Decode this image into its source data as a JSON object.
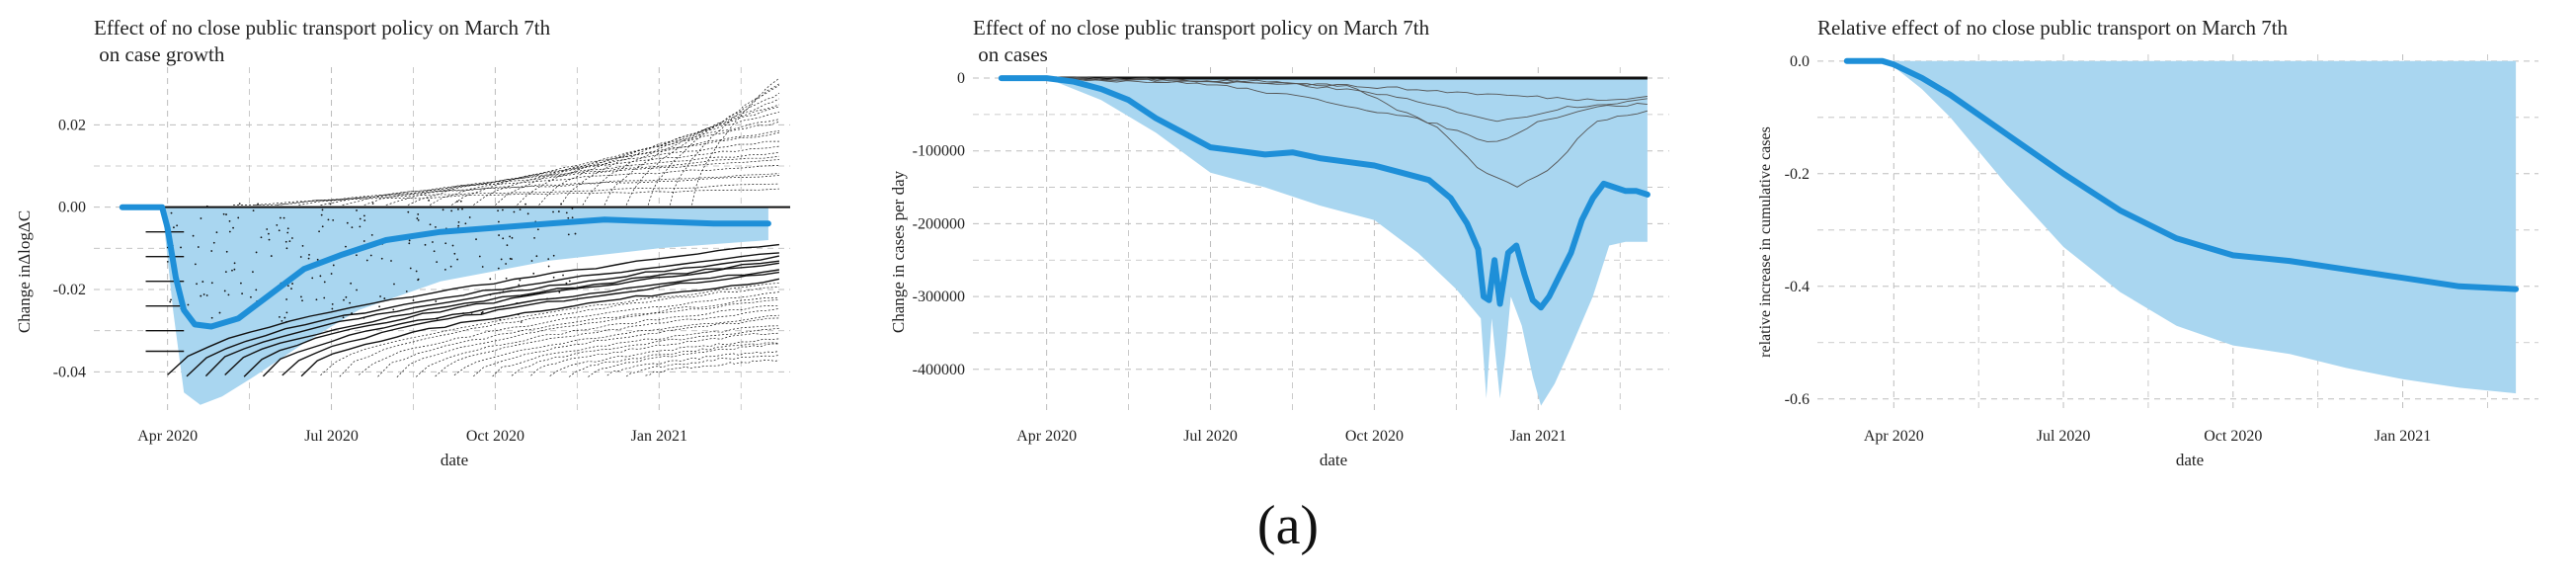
{
  "subfigure_label": "(a)",
  "colors": {
    "line": "#1E8FD8",
    "band": "#A9D6F0",
    "grid": "#BDBDBD",
    "traces": "#111111"
  },
  "chart_data": [
    {
      "type": "line",
      "title_lines": [
        "Effect of no close public transport policy on March 7th",
        " on case growth"
      ],
      "xlabel": "date",
      "ylabel": "Change inΔlogΔC",
      "x_ticks": [
        {
          "x": 1.0,
          "label": "Apr 2020"
        },
        {
          "x": 4.0,
          "label": "Jul 2020"
        },
        {
          "x": 7.0,
          "label": "Oct 2020"
        },
        {
          "x": 10.0,
          "label": "Jan 2021"
        }
      ],
      "y_ticks": [
        {
          "y": 0.02,
          "label": "0.02"
        },
        {
          "y": 0.0,
          "label": "0.00"
        },
        {
          "y": -0.02,
          "label": "-0.02"
        },
        {
          "y": -0.04,
          "label": "-0.04"
        }
      ],
      "xlim": [
        -0.35,
        12.4
      ],
      "ylim": [
        -0.05,
        0.034
      ],
      "series": [
        {
          "name": "estimate",
          "x": [
            0.17,
            0.9,
            1.0,
            1.15,
            1.3,
            1.5,
            1.8,
            2.3,
            2.9,
            3.5,
            4.2,
            5.0,
            6.0,
            7.0,
            8.0,
            9.0,
            10.0,
            11.0,
            12.0
          ],
          "y": [
            0.0,
            0.0,
            -0.005,
            -0.017,
            -0.025,
            -0.0285,
            -0.029,
            -0.027,
            -0.021,
            -0.015,
            -0.0115,
            -0.008,
            -0.006,
            -0.005,
            -0.004,
            -0.003,
            -0.0035,
            -0.004,
            -0.004
          ]
        }
      ],
      "band": {
        "x": [
          0.9,
          1.1,
          1.3,
          1.6,
          2.0,
          2.6,
          3.5,
          4.5,
          6.0,
          8.0,
          10.0,
          12.0
        ],
        "upper": [
          0.0,
          0.0,
          0.0,
          0.0,
          0.0,
          0.0,
          0.0,
          0.0,
          0.0,
          0.0,
          0.0,
          0.0
        ],
        "lower": [
          0.0,
          -0.025,
          -0.045,
          -0.048,
          -0.046,
          -0.041,
          -0.033,
          -0.025,
          -0.018,
          -0.013,
          -0.01,
          -0.008
        ]
      },
      "trace_description": "black bootstrap traces fanning above and below zero"
    },
    {
      "type": "line",
      "title_lines": [
        "Effect of no close public transport policy on March 7th",
        " on cases"
      ],
      "xlabel": "date",
      "ylabel": "Change in cases per day",
      "x_ticks": [
        {
          "x": 1.0,
          "label": "Apr 2020"
        },
        {
          "x": 4.0,
          "label": "Jul 2020"
        },
        {
          "x": 7.0,
          "label": "Oct 2020"
        },
        {
          "x": 10.0,
          "label": "Jan 2021"
        }
      ],
      "y_ticks": [
        {
          "y": 0,
          "label": "0"
        },
        {
          "y": -100000,
          "label": "-100000"
        },
        {
          "y": -200000,
          "label": "-200000"
        },
        {
          "y": -300000,
          "label": "-300000"
        },
        {
          "y": -400000,
          "label": "-400000"
        }
      ],
      "xlim": [
        -0.35,
        12.4
      ],
      "ylim": [
        -460000,
        15000
      ],
      "series": [
        {
          "name": "estimate",
          "x": [
            0.17,
            1.0,
            1.5,
            2.0,
            2.5,
            3.0,
            3.5,
            4.0,
            4.5,
            5.0,
            5.5,
            6.0,
            6.5,
            7.0,
            7.5,
            8.0,
            8.4,
            8.7,
            8.9,
            9.0,
            9.1,
            9.2,
            9.3,
            9.45,
            9.6,
            9.75,
            9.9,
            10.05,
            10.2,
            10.4,
            10.6,
            10.8,
            11.0,
            11.2,
            11.4,
            11.6,
            11.8,
            12.0
          ],
          "y": [
            0,
            0,
            -5000,
            -15000,
            -30000,
            -55000,
            -75000,
            -95000,
            -100000,
            -105000,
            -102000,
            -110000,
            -115000,
            -120000,
            -130000,
            -140000,
            -165000,
            -200000,
            -235000,
            -300000,
            -305000,
            -250000,
            -310000,
            -240000,
            -230000,
            -270000,
            -305000,
            -315000,
            -300000,
            -270000,
            -240000,
            -195000,
            -165000,
            -145000,
            -150000,
            -155000,
            -155000,
            -160000
          ]
        }
      ],
      "band": {
        "x": [
          1.0,
          2.0,
          3.0,
          4.0,
          5.0,
          6.0,
          7.0,
          7.8,
          8.5,
          8.95,
          9.05,
          9.15,
          9.3,
          9.4,
          9.5,
          9.7,
          9.9,
          10.05,
          10.3,
          10.6,
          11.0,
          11.3,
          11.6,
          12.0
        ],
        "upper": [
          0,
          0,
          0,
          0,
          0,
          0,
          0,
          0,
          0,
          0,
          0,
          0,
          0,
          0,
          0,
          0,
          0,
          0,
          0,
          0,
          0,
          0,
          0,
          0
        ],
        "lower": [
          0,
          -30000,
          -75000,
          -130000,
          -150000,
          -175000,
          -195000,
          -240000,
          -290000,
          -330000,
          -440000,
          -330000,
          -440000,
          -380000,
          -300000,
          -340000,
          -410000,
          -450000,
          -420000,
          -370000,
          -300000,
          -230000,
          -225000,
          -225000
        ]
      },
      "trace_description": "thin gray traces near zero"
    },
    {
      "type": "line",
      "title_lines": [
        "Relative effect of no close public transport on March 7th"
      ],
      "xlabel": "date",
      "ylabel": "relative increase in cumulative cases",
      "x_ticks": [
        {
          "x": 1.0,
          "label": "Apr 2020"
        },
        {
          "x": 4.0,
          "label": "Jul 2020"
        },
        {
          "x": 7.0,
          "label": "Oct 2020"
        },
        {
          "x": 10.0,
          "label": "Jan 2021"
        }
      ],
      "y_ticks": [
        {
          "y": 0.0,
          "label": "0.0"
        },
        {
          "y": -0.2,
          "label": "-0.2"
        },
        {
          "y": -0.4,
          "label": "-0.4"
        },
        {
          "y": -0.6,
          "label": "-0.6"
        }
      ],
      "xlim": [
        -0.35,
        12.4
      ],
      "ylim": [
        -0.625,
        0.012
      ],
      "series": [
        {
          "name": "estimate",
          "x": [
            0.17,
            0.8,
            1.0,
            1.5,
            2.0,
            3.0,
            4.0,
            5.0,
            6.0,
            7.0,
            8.0,
            9.0,
            10.0,
            11.0,
            12.0
          ],
          "y": [
            0.0,
            0.0,
            -0.006,
            -0.03,
            -0.06,
            -0.13,
            -0.2,
            -0.265,
            -0.315,
            -0.345,
            -0.355,
            -0.37,
            -0.385,
            -0.4,
            -0.405
          ]
        }
      ],
      "band": {
        "x": [
          0.8,
          1.0,
          1.5,
          2.0,
          3.0,
          4.0,
          5.0,
          6.0,
          7.0,
          8.0,
          9.0,
          10.0,
          11.0,
          12.0
        ],
        "upper": [
          0,
          0,
          0,
          0,
          0,
          0,
          0,
          0,
          0,
          0,
          0,
          0,
          0,
          0
        ],
        "lower": [
          0,
          -0.01,
          -0.05,
          -0.1,
          -0.22,
          -0.33,
          -0.41,
          -0.47,
          -0.505,
          -0.52,
          -0.545,
          -0.565,
          -0.58,
          -0.59
        ]
      }
    }
  ]
}
